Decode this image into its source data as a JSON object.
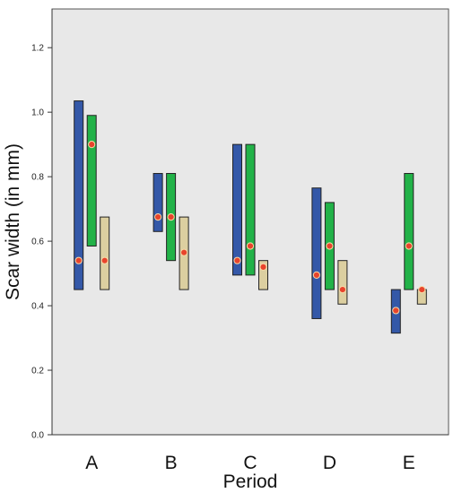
{
  "chart_data": {
    "type": "range-bar",
    "xlabel": "Period",
    "ylabel": "Scar width (in mm)",
    "categories": [
      "A",
      "B",
      "C",
      "D",
      "E"
    ],
    "ylim": [
      0,
      1.32
    ],
    "yticks": [
      "0.0",
      "0.2",
      "0.4",
      "0.6",
      "0.8",
      "1.0",
      "1.2"
    ],
    "grid": false,
    "colors": {
      "plot_background": "#e8e8e8",
      "marker": "#e8442c",
      "series": [
        "#3458a8",
        "#22b248",
        "#dccfa0"
      ]
    },
    "series": [
      {
        "color": "#3458a8",
        "low": [
          0.45,
          0.63,
          0.495,
          0.36,
          0.315
        ],
        "high": [
          1.035,
          0.81,
          0.9,
          0.765,
          0.45
        ],
        "marker": [
          0.54,
          0.675,
          0.54,
          0.495,
          0.385
        ]
      },
      {
        "color": "#22b248",
        "low": [
          0.585,
          0.54,
          0.495,
          0.45,
          0.45
        ],
        "high": [
          0.99,
          0.81,
          0.9,
          0.72,
          0.81
        ],
        "marker": [
          0.9,
          0.675,
          0.585,
          0.585,
          0.585
        ]
      },
      {
        "color": "#dccfa0",
        "low": [
          0.45,
          0.45,
          0.45,
          0.405,
          0.405
        ],
        "high": [
          0.675,
          0.675,
          0.54,
          0.54,
          0.45
        ],
        "marker": [
          0.54,
          0.565,
          0.52,
          0.45,
          0.45
        ]
      }
    ]
  }
}
